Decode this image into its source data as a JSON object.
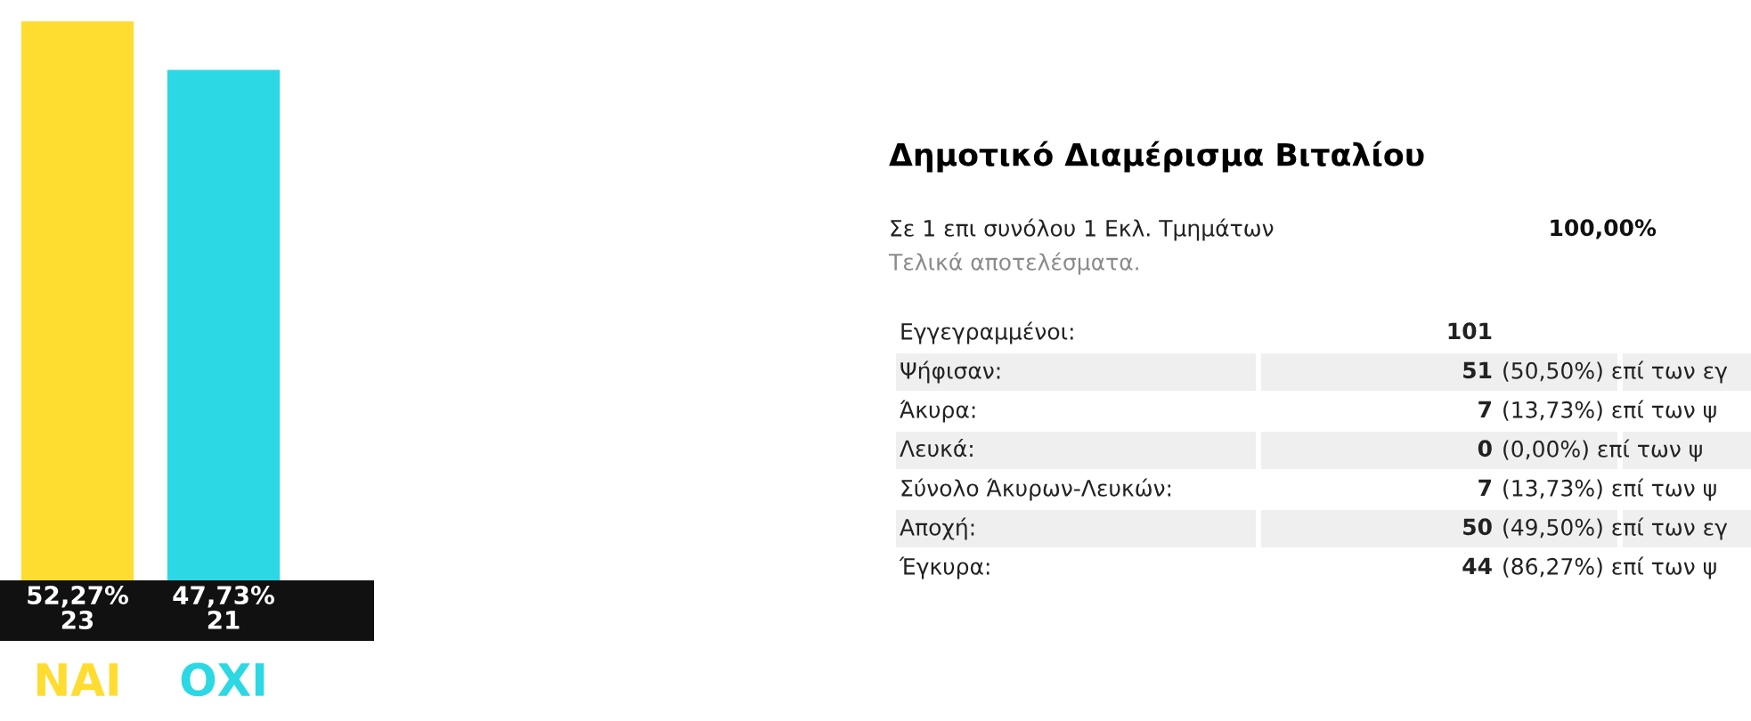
{
  "chart_data": [
    {
      "type": "bar",
      "categories": [
        "ΝΑΙ",
        "ΟΧΙ"
      ],
      "values": [
        52.27,
        47.73
      ],
      "colors": [
        "#ffdc30",
        "#2cd8e4"
      ],
      "value_labels": [
        "52,27%\n23",
        "47,73%\n21"
      ]
    },
    {
      "type": "other",
      "title": "Δημοτικό Διαμέρισμα Βιταλίου",
      "annotations": [
        "Σε 1 επι συνόλου 1 Εκλ. Τμημάτων",
        "100,00%",
        "Τελικά αποτελέσματα.",
        "Εγγεγραμμένοι:",
        "101",
        "Ψήφισαν:",
        "51",
        "(50,50%) επί των εγ",
        "Άκυρα:",
        "7",
        "(13,73%) επί των ψ",
        "Λευκά:",
        "0",
        "(0,00%) επί των ψ",
        "Σύνολο Άκυρων-Λευκών:",
        "7",
        "(13,73%) επί των ψ",
        "Αποχή:",
        "50",
        "(49,50%) επί των εγ",
        "Έγκυρα:",
        "44",
        "(86,27%) επί των ψ"
      ]
    }
  ]
}
